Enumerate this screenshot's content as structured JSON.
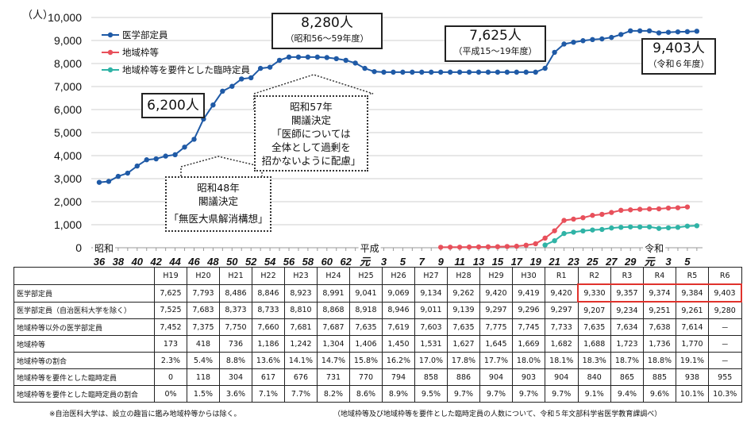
{
  "chart_data": {
    "type": "line",
    "yunit": "（人）",
    "ylim": [
      0,
      10000
    ],
    "yticks": [
      "0",
      "1,000",
      "2,000",
      "3,000",
      "4,000",
      "5,000",
      "6,000",
      "7,000",
      "8,000",
      "9,000",
      "10,000"
    ],
    "grid": true,
    "legend_position": "top-left",
    "era_labels": [
      {
        "label": "昭和",
        "index": 0
      },
      {
        "label": "平成",
        "index": 28
      },
      {
        "label": "令和",
        "index": 58
      }
    ],
    "xtick_labels": [
      "36",
      "38",
      "40",
      "42",
      "44",
      "46",
      "48",
      "50",
      "52",
      "54",
      "56",
      "58",
      "60",
      "62",
      "元",
      "3",
      "5",
      "7",
      "9",
      "11",
      "13",
      "15",
      "17",
      "19",
      "21",
      "23",
      "25",
      "27",
      "29",
      "元",
      "3",
      "5"
    ],
    "x": [
      "S36",
      "S37",
      "S38",
      "S39",
      "S40",
      "S41",
      "S42",
      "S43",
      "S44",
      "S45",
      "S46",
      "S47",
      "S48",
      "S49",
      "S50",
      "S51",
      "S52",
      "S53",
      "S54",
      "S55",
      "S56",
      "S57",
      "S58",
      "S59",
      "S60",
      "S61",
      "S62",
      "S63",
      "H1",
      "H2",
      "H3",
      "H4",
      "H5",
      "H6",
      "H7",
      "H8",
      "H9",
      "H10",
      "H11",
      "H12",
      "H13",
      "H14",
      "H15",
      "H16",
      "H17",
      "H18",
      "H19",
      "H20",
      "H21",
      "H22",
      "H23",
      "H24",
      "H25",
      "H26",
      "H27",
      "H28",
      "H29",
      "H30",
      "R1",
      "R2",
      "R3",
      "R4",
      "R5",
      "R6"
    ],
    "series": [
      {
        "name": "医学部定員",
        "color": "#1f5aa6",
        "values": [
          2840,
          2880,
          3100,
          3240,
          3550,
          3820,
          3860,
          3980,
          4040,
          4370,
          4710,
          5590,
          6200,
          6800,
          7010,
          7330,
          7380,
          7790,
          7840,
          8140,
          8280,
          8280,
          8280,
          8280,
          8260,
          8210,
          8140,
          8020,
          7790,
          7650,
          7625,
          7625,
          7625,
          7625,
          7625,
          7625,
          7625,
          7625,
          7625,
          7625,
          7625,
          7625,
          7625,
          7625,
          7625,
          7625,
          7625,
          7793,
          8486,
          8846,
          8923,
          8991,
          9041,
          9069,
          9134,
          9262,
          9420,
          9419,
          9420,
          9330,
          9357,
          9374,
          9384,
          9403
        ]
      },
      {
        "name": "地域枠等",
        "color": "#e8505b",
        "values": [
          null,
          null,
          null,
          null,
          null,
          null,
          null,
          null,
          null,
          null,
          null,
          null,
          null,
          null,
          null,
          null,
          null,
          null,
          null,
          null,
          null,
          null,
          null,
          null,
          null,
          null,
          null,
          null,
          null,
          null,
          null,
          null,
          null,
          null,
          null,
          null,
          20,
          25,
          25,
          30,
          35,
          40,
          45,
          55,
          65,
          110,
          173,
          418,
          736,
          1186,
          1242,
          1304,
          1406,
          1450,
          1531,
          1627,
          1645,
          1669,
          1682,
          1688,
          1723,
          1736,
          1770,
          null
        ]
      },
      {
        "name": "地域枠等を要件とした臨時定員",
        "color": "#2fb3a6",
        "values": [
          null,
          null,
          null,
          null,
          null,
          null,
          null,
          null,
          null,
          null,
          null,
          null,
          null,
          null,
          null,
          null,
          null,
          null,
          null,
          null,
          null,
          null,
          null,
          null,
          null,
          null,
          null,
          null,
          null,
          null,
          null,
          null,
          null,
          null,
          null,
          null,
          null,
          null,
          null,
          null,
          null,
          null,
          null,
          null,
          null,
          null,
          null,
          118,
          304,
          617,
          676,
          731,
          770,
          794,
          858,
          886,
          904,
          903,
          904,
          840,
          865,
          885,
          938,
          955
        ]
      }
    ]
  },
  "annotations": {
    "a6200": "6,200人",
    "a8280": "8,280人",
    "a8280_sub": "（昭和56～59年度）",
    "a7625": "7,625人",
    "a7625_sub": "（平成15～19年度）",
    "a9403": "9,403人",
    "a9403_sub": "（令和６年度）",
    "s57": [
      "昭和57年",
      "閣議決定",
      "「医師については",
      "全体として過剰を",
      "招かないように配慮」"
    ],
    "s48": [
      "昭和48年",
      "閣議決定",
      "「無医大県解消構想」"
    ]
  },
  "table": {
    "headers": [
      "H19",
      "H20",
      "H21",
      "H22",
      "H23",
      "H24",
      "H25",
      "H26",
      "H27",
      "H28",
      "H29",
      "H30",
      "R1",
      "R2",
      "R3",
      "R4",
      "R5",
      "R6"
    ],
    "rows": [
      {
        "label": "医学部定員",
        "values": [
          "7,625",
          "7,793",
          "8,486",
          "8,846",
          "8,923",
          "8,991",
          "9,041",
          "9,069",
          "9,134",
          "9,262",
          "9,420",
          "9,419",
          "9,420",
          "9,330",
          "9,357",
          "9,374",
          "9,384",
          "9,403"
        ]
      },
      {
        "label": "医学部定員（自治医科大学を除く）",
        "values": [
          "7,525",
          "7,683",
          "8,373",
          "8,733",
          "8,810",
          "8,868",
          "8,918",
          "8,946",
          "9,011",
          "9,139",
          "9,297",
          "9,296",
          "9,297",
          "9,207",
          "9,234",
          "9,251",
          "9,261",
          "9,280"
        ]
      },
      {
        "label": "地域枠等以外の医学部定員",
        "values": [
          "7,452",
          "7,375",
          "7,750",
          "7,660",
          "7,681",
          "7,687",
          "7,635",
          "7,619",
          "7,603",
          "7,635",
          "7,775",
          "7,745",
          "7,733",
          "7,635",
          "7,634",
          "7,638",
          "7,614",
          "－"
        ]
      },
      {
        "label": "地域枠等",
        "values": [
          "173",
          "418",
          "736",
          "1,186",
          "1,242",
          "1,304",
          "1,406",
          "1,450",
          "1,531",
          "1,627",
          "1,645",
          "1,669",
          "1,682",
          "1,688",
          "1,723",
          "1,736",
          "1,770",
          "－"
        ]
      },
      {
        "label": "地域枠等の割合",
        "values": [
          "2.3%",
          "5.4%",
          "8.8%",
          "13.6%",
          "14.1%",
          "14.7%",
          "15.8%",
          "16.2%",
          "17.0%",
          "17.8%",
          "17.7%",
          "18.0%",
          "18.1%",
          "18.3%",
          "18.7%",
          "18.8%",
          "19.1%",
          "－"
        ]
      },
      {
        "label": "地域枠等を要件とした臨時定員",
        "values": [
          "0",
          "118",
          "304",
          "617",
          "676",
          "731",
          "770",
          "794",
          "858",
          "886",
          "904",
          "903",
          "904",
          "840",
          "865",
          "885",
          "938",
          "955"
        ]
      },
      {
        "label": "地域枠等を要件とした臨時定員の割合",
        "values": [
          "0%",
          "1.5%",
          "3.6%",
          "7.1%",
          "7.7%",
          "8.2%",
          "8.6%",
          "8.9%",
          "9.5%",
          "9.7%",
          "9.7%",
          "9.7%",
          "9.7%",
          "9.1%",
          "9.4%",
          "9.6%",
          "10.1%",
          "10.3%"
        ]
      }
    ],
    "highlight_color": "#e0322c"
  },
  "footnotes": {
    "left": "※自治医科大学は、設立の趣旨に鑑み地域枠等からは除く。",
    "right": "（地域枠等及び地域枠等を要件とした臨時定員の人数について、令和５年文部科学省医学教育課調べ）"
  }
}
